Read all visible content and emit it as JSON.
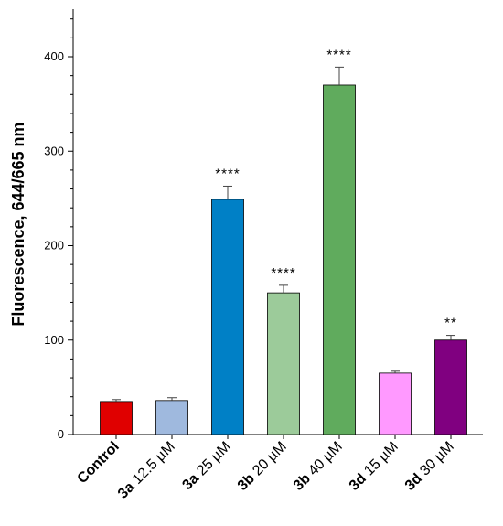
{
  "chart_data": {
    "type": "bar",
    "title": "",
    "ylabel": "Fluorescence, 644/665 nm",
    "xlabel": "",
    "ylim": [
      0,
      450
    ],
    "yticks": [
      0,
      100,
      200,
      300,
      400
    ],
    "grid": false,
    "categories": [
      {
        "bold": "Control",
        "rest": ""
      },
      {
        "bold": "3a",
        "rest": " 12.5 µM"
      },
      {
        "bold": "3a",
        "rest": " 25 µM"
      },
      {
        "bold": "3b",
        "rest": " 20 µM"
      },
      {
        "bold": "3b",
        "rest": " 40 µM"
      },
      {
        "bold": "3d",
        "rest": " 15 µM"
      },
      {
        "bold": "3d",
        "rest": " 30 µM"
      }
    ],
    "values": [
      35,
      36,
      249,
      150,
      370,
      65,
      100
    ],
    "errors": [
      2,
      3,
      14,
      8,
      19,
      2,
      5
    ],
    "colors": [
      "#e00000",
      "#9fb9de",
      "#0080c6",
      "#9ccb9a",
      "#60ab5d",
      "#ff99ff",
      "#800080"
    ],
    "significance": [
      "",
      "",
      "****",
      "****",
      "****",
      "",
      "**"
    ]
  }
}
